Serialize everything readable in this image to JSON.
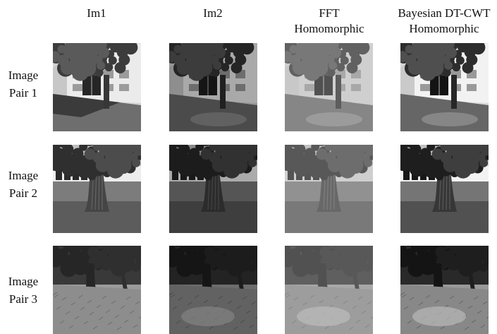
{
  "columns": [
    {
      "id": "im1",
      "label": "Im1"
    },
    {
      "id": "im2",
      "label": "Im2"
    },
    {
      "id": "fft",
      "label": "FFT\nHomomorphic"
    },
    {
      "id": "bayes",
      "label": "Bayesian DT-CWT\nHomomorphic"
    }
  ],
  "rows": [
    {
      "label_line1": "Image",
      "label_line2": "Pair 1",
      "scene": "building-tree"
    },
    {
      "label_line1": "Image",
      "label_line2": "Pair 2",
      "scene": "tree-trunk"
    },
    {
      "label_line1": "Image",
      "label_line2": "Pair 3",
      "scene": "forest-grass"
    }
  ],
  "colors": {
    "background": "#ffffff",
    "text": "#111111"
  }
}
